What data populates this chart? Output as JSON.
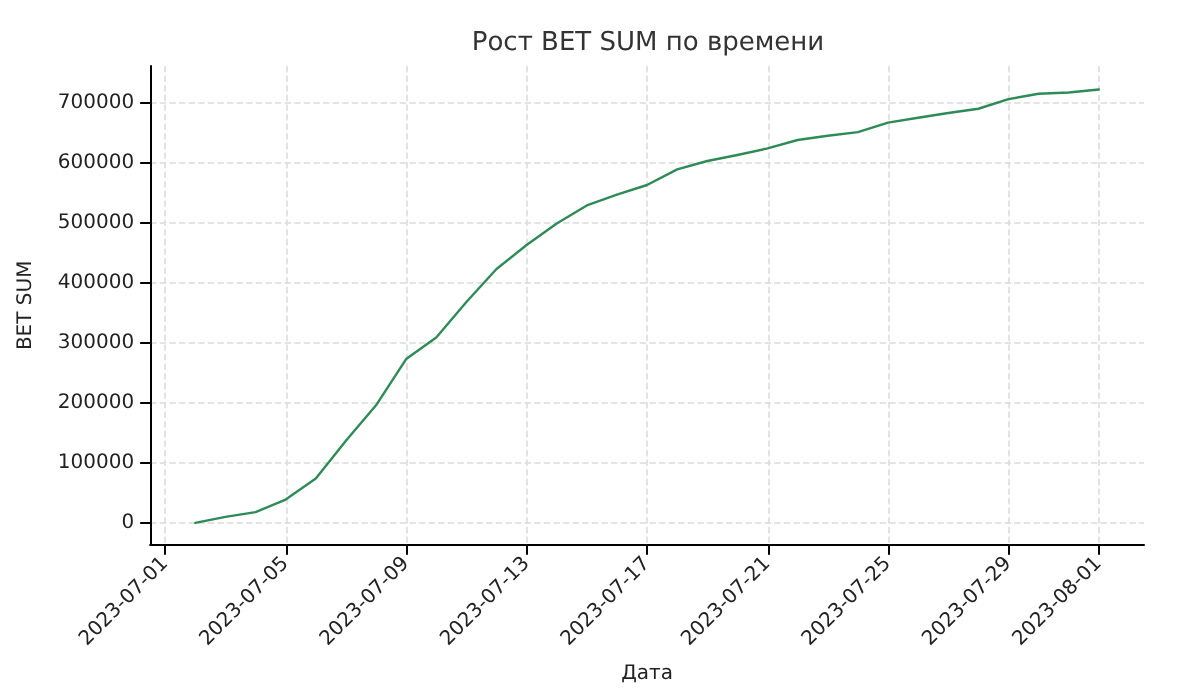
{
  "chart_data": {
    "type": "line",
    "title": "Рост BET SUM по времени",
    "xlabel": "Дата",
    "ylabel": "BET SUM",
    "x": [
      "2023-07-02",
      "2023-07-03",
      "2023-07-04",
      "2023-07-05",
      "2023-07-06",
      "2023-07-07",
      "2023-07-08",
      "2023-07-09",
      "2023-07-10",
      "2023-07-11",
      "2023-07-12",
      "2023-07-13",
      "2023-07-14",
      "2023-07-15",
      "2023-07-16",
      "2023-07-17",
      "2023-07-18",
      "2023-07-19",
      "2023-07-20",
      "2023-07-21",
      "2023-07-22",
      "2023-07-23",
      "2023-07-24",
      "2023-07-25",
      "2023-07-26",
      "2023-07-27",
      "2023-07-28",
      "2023-07-29",
      "2023-07-30",
      "2023-07-31",
      "2023-08-01"
    ],
    "series": [
      {
        "color": "#2e8b57",
        "values": [
          0,
          10000,
          18000,
          39000,
          74000,
          137000,
          196000,
          273000,
          309000,
          368000,
          423000,
          463000,
          499000,
          529000,
          547000,
          563000,
          589000,
          603000,
          613000,
          624000,
          638000,
          645000,
          651000,
          667000,
          675000,
          683000,
          690000,
          706000,
          715000,
          717000,
          722000
        ]
      }
    ],
    "xlim": [
      "2023-06-30T12:00",
      "2023-08-02T12:00"
    ],
    "xticks": [
      "2023-07-01",
      "2023-07-05",
      "2023-07-09",
      "2023-07-13",
      "2023-07-17",
      "2023-07-21",
      "2023-07-25",
      "2023-07-29",
      "2023-08-01"
    ],
    "ylim": [
      -36250,
      761250
    ],
    "yticks": [
      0,
      100000,
      200000,
      300000,
      400000,
      500000,
      600000,
      700000
    ],
    "grid": true,
    "marker": "none",
    "line_style": "solid"
  }
}
